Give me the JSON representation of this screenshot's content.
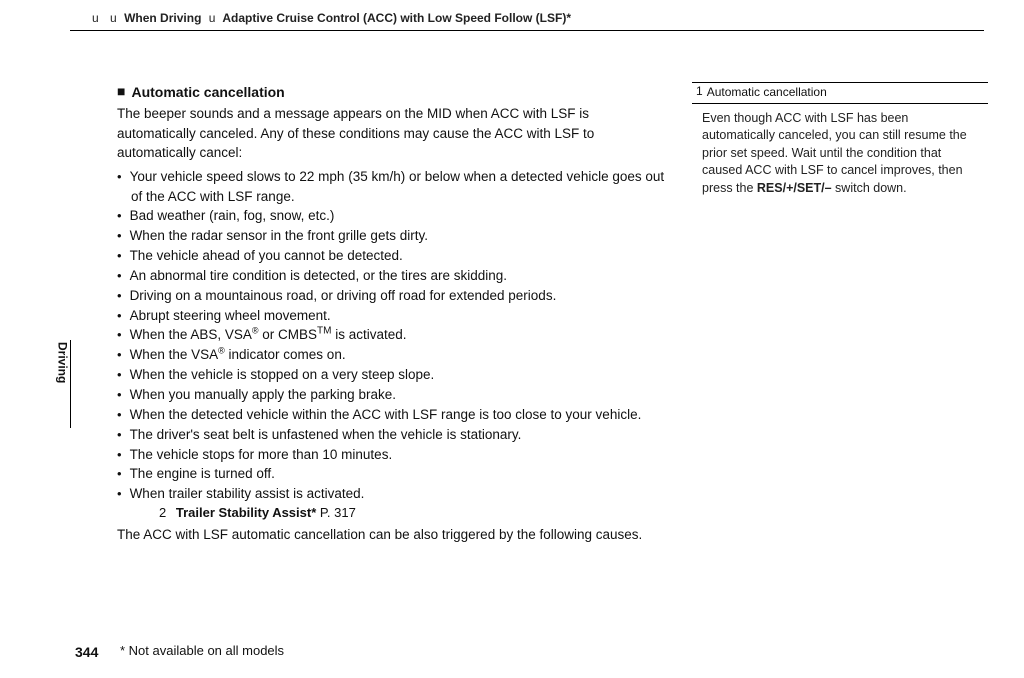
{
  "breadcrumb": {
    "sep1": "u",
    "sep2": "u",
    "part1": "When Driving",
    "sep3": "u",
    "part2": "Adaptive Cruise Control (ACC) with Low Speed Follow (LSF)*"
  },
  "side_tab": "Driving",
  "heading": "Automatic cancellation",
  "intro": "The beeper sounds and a message appears on the MID when ACC with LSF is automatically canceled. Any of these conditions may cause the ACC with LSF to automatically cancel:",
  "bullets": [
    "Your vehicle speed slows to 22 mph (35 km/h) or below when a detected vehicle goes out of the ACC with LSF range.",
    "Bad weather (rain, fog, snow, etc.)",
    "When the radar sensor in the front grille gets dirty.",
    "The vehicle ahead of you cannot be detected.",
    "An abnormal tire condition is detected, or the tires are skidding.",
    "Driving on a mountainous road, or driving off road for extended periods.",
    "Abrupt steering wheel movement.",
    "When the ABS, VSA ® or CMBS™ is activated.",
    "When the VSA ® indicator comes on.",
    "When the vehicle is stopped on a very steep slope.",
    "When you manually apply the parking brake.",
    "When the detected vehicle within the ACC with LSF range is too close to your vehicle.",
    "The driver's seat belt is unfastened when the vehicle is stationary.",
    "The vehicle stops for more than 10 minutes.",
    "The engine is turned off.",
    "When trailer stability assist is activated."
  ],
  "xref": {
    "arrow": "2",
    "title": "Trailer Stability Assist*",
    "page": "P. 317"
  },
  "closing": "The ACC with LSF automatic cancellation can be also triggered by the following causes.",
  "sidebar": {
    "caret": "1",
    "title": "Automatic cancellation",
    "body_pre": "Even though ACC with LSF has been automatically canceled, you can still resume the prior set speed. Wait until the condition that caused ACC with LSF to cancel improves, then press the ",
    "body_bold": "RES/+/SET/–",
    "body_post": " switch down."
  },
  "page_number": "344",
  "footnote": "* Not available on all models"
}
